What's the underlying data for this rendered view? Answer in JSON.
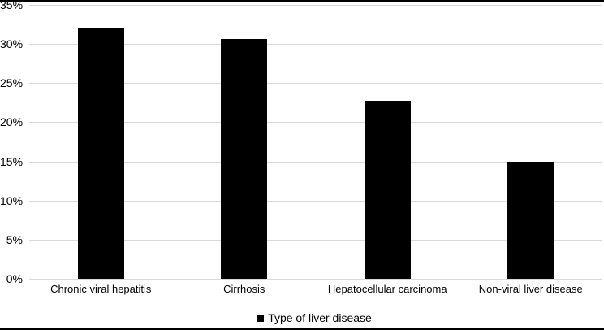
{
  "chart_data": {
    "type": "bar",
    "categories": [
      "Chronic viral hepatitis",
      "Cirrhosis",
      "Hepatocellular carcinoma",
      "Non-viral liver disease"
    ],
    "values": [
      32,
      30.6,
      22.7,
      15
    ],
    "title": "",
    "xlabel": "",
    "ylabel": "",
    "ylim": [
      0,
      35
    ],
    "yticks": [
      0,
      5,
      10,
      15,
      20,
      25,
      30,
      35
    ],
    "ytick_labels": [
      "0%",
      "5%",
      "10%",
      "15%",
      "20%",
      "25%",
      "30%",
      "35%"
    ],
    "grid": true,
    "bar_color": "#000000",
    "gridline_color": "#d9d9d9",
    "frame_line_color": "#000000",
    "legend": {
      "label": "Type of liver disease",
      "swatch_color": "#000000",
      "position": "bottom"
    }
  }
}
